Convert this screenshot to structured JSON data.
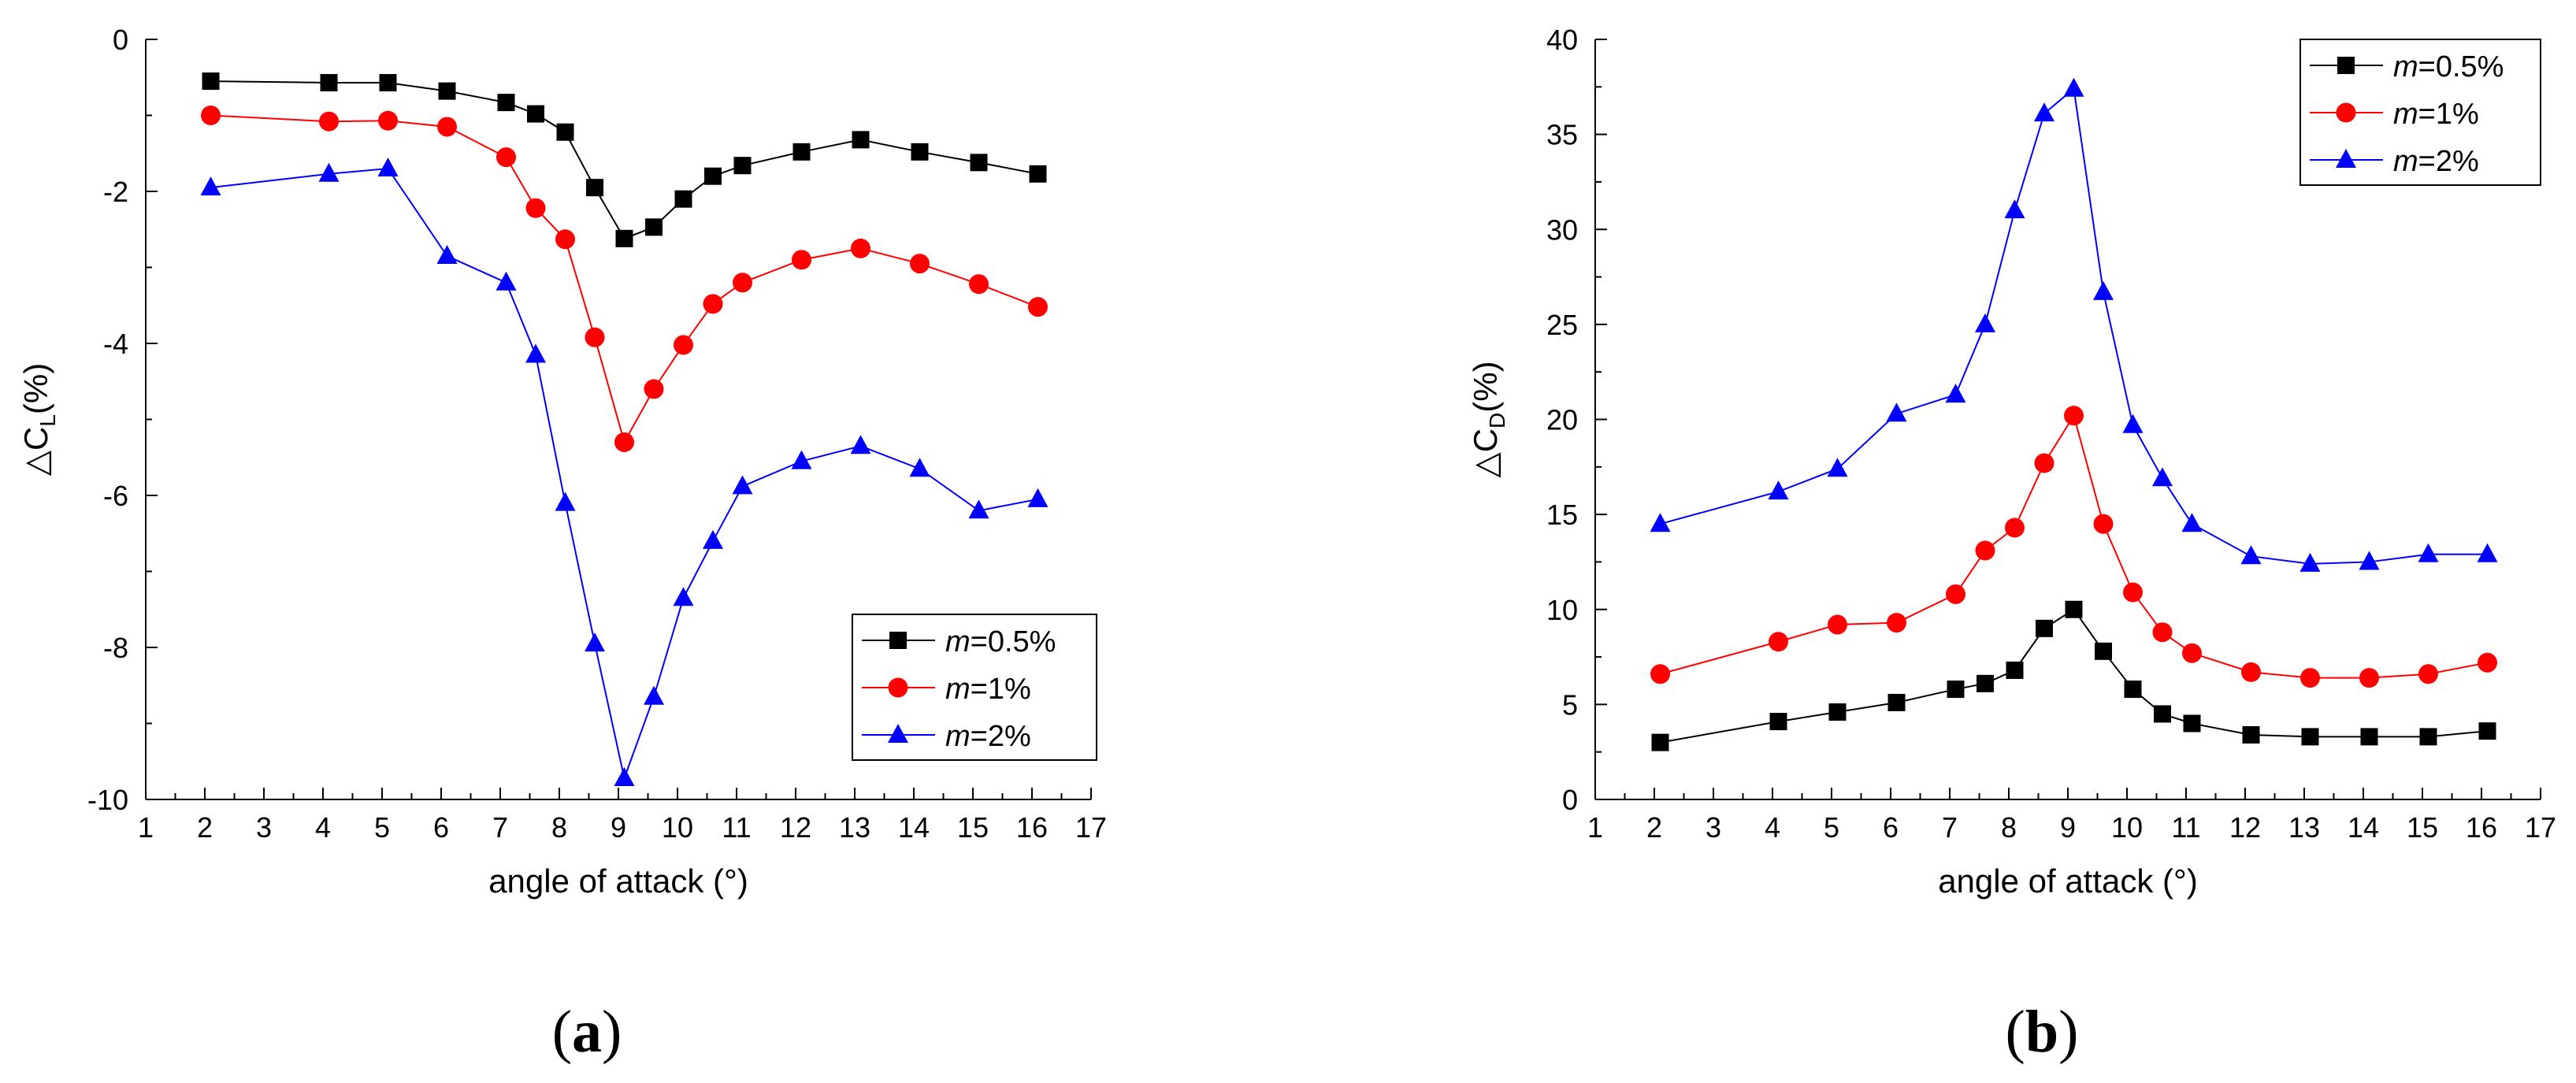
{
  "chart_data": [
    {
      "type": "line",
      "panel_label": "(a)",
      "xlabel": "angle of attack (°)",
      "ylabel": "△C_L(%)",
      "ylabel_main": "△C",
      "ylabel_sub": "L",
      "ylabel_unit": "(%)",
      "xlim": [
        1,
        17
      ],
      "ylim": [
        -10,
        0
      ],
      "xticks": [
        "1",
        "2",
        "3",
        "4",
        "5",
        "6",
        "7",
        "8",
        "9",
        "10",
        "11",
        "12",
        "13",
        "14",
        "15",
        "16",
        "17"
      ],
      "yticks": [
        "-10",
        "-8",
        "-6",
        "-4",
        "-2",
        "0"
      ],
      "legend_position": "lower-right",
      "x": [
        2.1,
        4.1,
        5.1,
        6.1,
        7.1,
        7.6,
        8.1,
        8.6,
        9.1,
        9.6,
        10.1,
        10.6,
        11.1,
        12.1,
        13.1,
        14.1,
        15.1,
        16.1
      ],
      "series": [
        {
          "name": "m=0.5%",
          "name_italic": "m",
          "name_rest": "=0.5%",
          "color": "#000000",
          "marker": "square",
          "values": [
            -0.55,
            -0.57,
            -0.57,
            -0.68,
            -0.83,
            -0.98,
            -1.22,
            -1.95,
            -2.62,
            -2.47,
            -2.1,
            -1.8,
            -1.66,
            -1.48,
            -1.32,
            -1.48,
            -1.62,
            -1.77
          ]
        },
        {
          "name": "m=1%",
          "name_italic": "m",
          "name_rest": "=1%",
          "color": "#ff0000",
          "marker": "circle",
          "values": [
            -1.0,
            -1.08,
            -1.07,
            -1.15,
            -1.55,
            -2.22,
            -2.63,
            -3.92,
            -5.3,
            -4.6,
            -4.02,
            -3.48,
            -3.2,
            -2.9,
            -2.75,
            -2.95,
            -3.22,
            -3.52
          ]
        },
        {
          "name": "m=2%",
          "name_italic": "m",
          "name_rest": "=2%",
          "color": "#0000ff",
          "marker": "triangle",
          "values": [
            -1.95,
            -1.77,
            -1.7,
            -2.85,
            -3.2,
            -4.15,
            -6.1,
            -7.95,
            -9.72,
            -8.65,
            -7.35,
            -6.6,
            -5.88,
            -5.55,
            -5.35,
            -5.65,
            -6.2,
            -6.05
          ]
        }
      ]
    },
    {
      "type": "line",
      "panel_label": "(b)",
      "xlabel": "angle of attack (°)",
      "ylabel": "△C_D(%)",
      "ylabel_main": "△C",
      "ylabel_sub": "D",
      "ylabel_unit": "(%)",
      "xlim": [
        1,
        17
      ],
      "ylim": [
        0,
        40
      ],
      "xticks": [
        "1",
        "2",
        "3",
        "4",
        "5",
        "6",
        "7",
        "8",
        "9",
        "10",
        "11",
        "12",
        "13",
        "14",
        "15",
        "16",
        "17"
      ],
      "yticks": [
        "0",
        "5",
        "10",
        "15",
        "20",
        "25",
        "30",
        "35",
        "40"
      ],
      "legend_position": "top-right",
      "x": [
        2.1,
        4.1,
        5.1,
        6.1,
        7.1,
        7.6,
        8.1,
        8.6,
        9.1,
        9.6,
        10.1,
        10.6,
        11.1,
        12.1,
        13.1,
        14.1,
        15.1,
        16.1
      ],
      "series": [
        {
          "name": "m=0.5%",
          "name_italic": "m",
          "name_rest": "=0.5%",
          "color": "#000000",
          "marker": "square",
          "values": [
            3.0,
            4.1,
            4.6,
            5.1,
            5.8,
            6.1,
            6.8,
            9.0,
            10.0,
            7.8,
            5.8,
            4.5,
            4.0,
            3.4,
            3.3,
            3.3,
            3.3,
            3.6
          ]
        },
        {
          "name": "m=1%",
          "name_italic": "m",
          "name_rest": "=1%",
          "color": "#ff0000",
          "marker": "circle",
          "values": [
            6.6,
            8.3,
            9.2,
            9.3,
            10.8,
            13.1,
            14.3,
            17.7,
            20.2,
            14.5,
            10.9,
            8.8,
            7.7,
            6.7,
            6.4,
            6.4,
            6.6,
            7.2
          ]
        },
        {
          "name": "m=2%",
          "name_italic": "m",
          "name_rest": "=2%",
          "color": "#0000ff",
          "marker": "triangle",
          "values": [
            14.5,
            16.2,
            17.4,
            20.3,
            21.3,
            25.0,
            31.0,
            36.1,
            37.4,
            26.7,
            19.7,
            16.9,
            14.5,
            12.8,
            12.4,
            12.5,
            12.9,
            12.9
          ]
        }
      ]
    }
  ]
}
